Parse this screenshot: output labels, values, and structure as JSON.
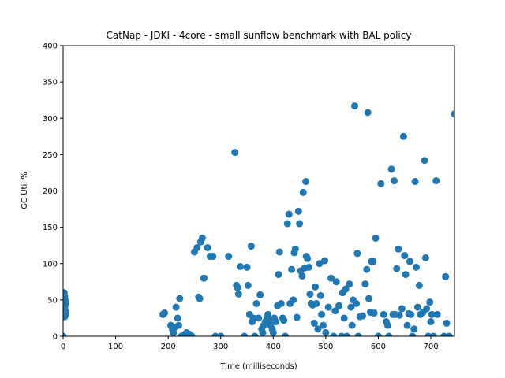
{
  "chart_data": {
    "type": "scatter",
    "title": "CatNap - JDKI - 4core -  small sunflow benchmark with BAL policy",
    "xlabel": "Time (milliseconds)",
    "ylabel": "GC Util %",
    "xlim": [
      0,
      745
    ],
    "ylim": [
      0,
      400
    ],
    "xticks": [
      0,
      100,
      200,
      300,
      400,
      500,
      600,
      700
    ],
    "yticks": [
      0,
      50,
      100,
      150,
      200,
      250,
      300,
      350,
      400
    ],
    "grid": false,
    "marker_color": "#1f77b4",
    "series": [
      {
        "points": [
          [
            2,
            60
          ],
          [
            3,
            55
          ],
          [
            4,
            50
          ],
          [
            5,
            45
          ],
          [
            3,
            40
          ],
          [
            4,
            35
          ],
          [
            5,
            30
          ],
          [
            3,
            27
          ],
          [
            0,
            0
          ],
          [
            190,
            30
          ],
          [
            193,
            32
          ],
          [
            205,
            15
          ],
          [
            208,
            10
          ],
          [
            210,
            5
          ],
          [
            212,
            12
          ],
          [
            215,
            40
          ],
          [
            218,
            25
          ],
          [
            220,
            15
          ],
          [
            222,
            52
          ],
          [
            225,
            0
          ],
          [
            230,
            2
          ],
          [
            235,
            5
          ],
          [
            240,
            3
          ],
          [
            245,
            0
          ],
          [
            250,
            116
          ],
          [
            255,
            122
          ],
          [
            258,
            54
          ],
          [
            260,
            52
          ],
          [
            262,
            130
          ],
          [
            265,
            135
          ],
          [
            268,
            80
          ],
          [
            275,
            122
          ],
          [
            280,
            110
          ],
          [
            285,
            110
          ],
          [
            290,
            0
          ],
          [
            300,
            0
          ],
          [
            315,
            110
          ],
          [
            327,
            253
          ],
          [
            330,
            70
          ],
          [
            332,
            67
          ],
          [
            334,
            58
          ],
          [
            337,
            96
          ],
          [
            345,
            0
          ],
          [
            350,
            95
          ],
          [
            352,
            70
          ],
          [
            355,
            30
          ],
          [
            358,
            124
          ],
          [
            360,
            20
          ],
          [
            362,
            25
          ],
          [
            365,
            0
          ],
          [
            368,
            45
          ],
          [
            372,
            25
          ],
          [
            375,
            57
          ],
          [
            378,
            10
          ],
          [
            380,
            5
          ],
          [
            382,
            15
          ],
          [
            385,
            20
          ],
          [
            388,
            25
          ],
          [
            390,
            30
          ],
          [
            392,
            22
          ],
          [
            395,
            15
          ],
          [
            398,
            10
          ],
          [
            400,
            5
          ],
          [
            402,
            25
          ],
          [
            405,
            20
          ],
          [
            408,
            42
          ],
          [
            410,
            85
          ],
          [
            412,
            116
          ],
          [
            415,
            45
          ],
          [
            418,
            25
          ],
          [
            420,
            22
          ],
          [
            423,
            0
          ],
          [
            427,
            155
          ],
          [
            430,
            168
          ],
          [
            432,
            45
          ],
          [
            435,
            92
          ],
          [
            438,
            50
          ],
          [
            440,
            115
          ],
          [
            442,
            120
          ],
          [
            445,
            26
          ],
          [
            448,
            172
          ],
          [
            450,
            155
          ],
          [
            452,
            90
          ],
          [
            455,
            83
          ],
          [
            457,
            198
          ],
          [
            460,
            94
          ],
          [
            462,
            213
          ],
          [
            463,
            110
          ],
          [
            465,
            107
          ],
          [
            468,
            95
          ],
          [
            470,
            58
          ],
          [
            472,
            45
          ],
          [
            475,
            43
          ],
          [
            478,
            18
          ],
          [
            480,
            68
          ],
          [
            482,
            45
          ],
          [
            485,
            10
          ],
          [
            488,
            100
          ],
          [
            490,
            56
          ],
          [
            492,
            30
          ],
          [
            495,
            15
          ],
          [
            498,
            104
          ],
          [
            500,
            5
          ],
          [
            505,
            40
          ],
          [
            510,
            80
          ],
          [
            515,
            0
          ],
          [
            518,
            35
          ],
          [
            520,
            75
          ],
          [
            525,
            42
          ],
          [
            530,
            0
          ],
          [
            532,
            60
          ],
          [
            535,
            25
          ],
          [
            538,
            65
          ],
          [
            540,
            0
          ],
          [
            545,
            72
          ],
          [
            548,
            40
          ],
          [
            550,
            15
          ],
          [
            552,
            50
          ],
          [
            555,
            317
          ],
          [
            558,
            45
          ],
          [
            560,
            114
          ],
          [
            562,
            0
          ],
          [
            565,
            27
          ],
          [
            570,
            28
          ],
          [
            575,
            72
          ],
          [
            578,
            92
          ],
          [
            580,
            308
          ],
          [
            582,
            52
          ],
          [
            585,
            33
          ],
          [
            587,
            103
          ],
          [
            590,
            103
          ],
          [
            592,
            32
          ],
          [
            595,
            135
          ],
          [
            600,
            0
          ],
          [
            605,
            210
          ],
          [
            610,
            30
          ],
          [
            615,
            20
          ],
          [
            618,
            15
          ],
          [
            620,
            0
          ],
          [
            625,
            230
          ],
          [
            628,
            30
          ],
          [
            630,
            214
          ],
          [
            632,
            30
          ],
          [
            635,
            93
          ],
          [
            638,
            120
          ],
          [
            640,
            29
          ],
          [
            645,
            38
          ],
          [
            648,
            275
          ],
          [
            650,
            111
          ],
          [
            652,
            85
          ],
          [
            655,
            15
          ],
          [
            658,
            31
          ],
          [
            660,
            103
          ],
          [
            662,
            30
          ],
          [
            665,
            0
          ],
          [
            668,
            10
          ],
          [
            670,
            213
          ],
          [
            672,
            95
          ],
          [
            675,
            40
          ],
          [
            678,
            70
          ],
          [
            680,
            30
          ],
          [
            685,
            33
          ],
          [
            688,
            242
          ],
          [
            690,
            108
          ],
          [
            692,
            38
          ],
          [
            695,
            0
          ],
          [
            698,
            47
          ],
          [
            700,
            20
          ],
          [
            702,
            30
          ],
          [
            705,
            0
          ],
          [
            710,
            214
          ],
          [
            712,
            30
          ],
          [
            725,
            0
          ],
          [
            728,
            82
          ],
          [
            730,
            18
          ],
          [
            735,
            0
          ],
          [
            745,
            306
          ]
        ]
      }
    ]
  }
}
